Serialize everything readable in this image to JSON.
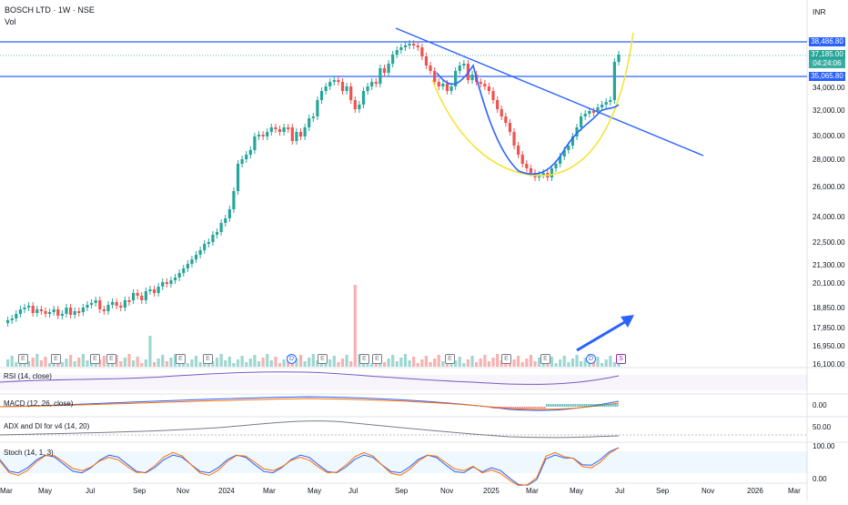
{
  "header": {
    "title": "BOSCH LTD · 1W · NSE",
    "vol_label": "Vol"
  },
  "currency": "INR",
  "price_scale": [
    "34,000.00",
    "32,000.00",
    "30,000.00",
    "28,000.00",
    "26,000.00",
    "24,000.00",
    "22,500.00",
    "21,300.00",
    "20,100.00",
    "18,850.00",
    "17,850.00",
    "16,950.00",
    "16,100.00"
  ],
  "price_tags": {
    "top": "38,486.80",
    "last": "37,185.00",
    "countdown": "04:24:06",
    "mid": "35,065.80"
  },
  "indicators": {
    "rsi": "RSI (14, close)",
    "macd": "MACD (12, 26, close)",
    "macd_scale": "0.00",
    "adx": "ADX and DI for v4 (14, 20)",
    "adx_scale": "50.00",
    "stoch": "Stoch (14, 1, 3)",
    "stoch_hi": "100.00",
    "stoch_lo": "0.00"
  },
  "time_axis": [
    "Mar",
    "May",
    "Jul",
    "Sep",
    "Nov",
    "2024",
    "Mar",
    "May",
    "Jul",
    "Sep",
    "Nov",
    "2025",
    "Mar",
    "May",
    "Jul",
    "Sep",
    "Nov",
    "2026",
    "Mar"
  ],
  "events": [
    "E",
    "E",
    "E",
    "E",
    "E",
    "E",
    "D",
    "E",
    "E",
    "E",
    "E",
    "E",
    "E",
    "D",
    "S"
  ],
  "colors": {
    "up": "#26a69a",
    "down": "#ef5350",
    "trend": "#2962ff",
    "cup": "#f5e33b",
    "ma": "#2962ff"
  }
}
